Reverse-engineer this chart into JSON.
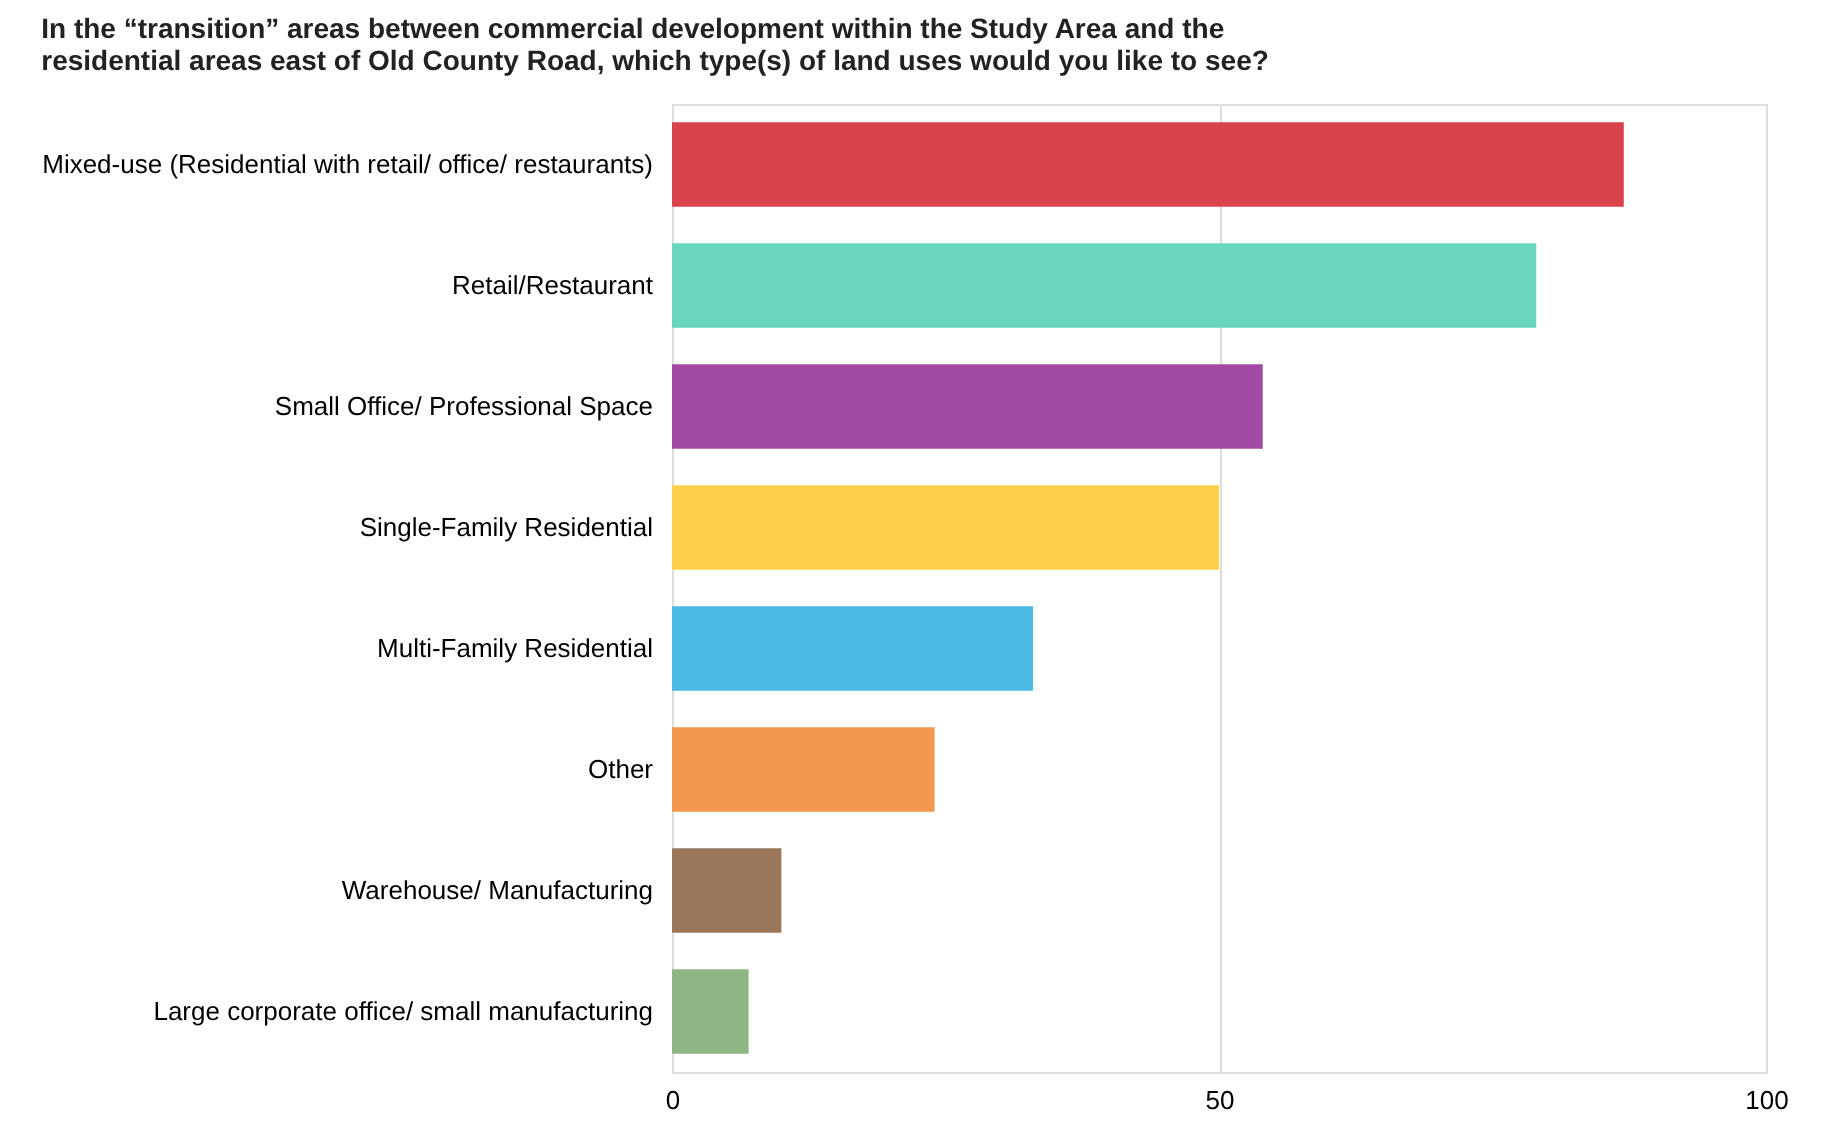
{
  "chart_data": {
    "type": "bar",
    "orientation": "horizontal",
    "title": [
      "In the “transition” areas between commercial development within the Study Area and the",
      "residential areas east of Old County Road, which type(s) of land uses would you like to see?"
    ],
    "categories": [
      "Mixed-use (Residential with retail/ office/ restaurants)",
      "Retail/Restaurant",
      "Small Office/ Professional Space",
      "Single-Family Residential",
      "Multi-Family Residential",
      "Other",
      "Warehouse/ Manufacturing",
      "Large corporate office/ small manufacturing"
    ],
    "values": [
      87,
      79,
      54,
      50,
      33,
      24,
      10,
      7
    ],
    "colors": [
      "#d9434b",
      "#6ad6c0",
      "#a24aa3",
      "#fcd04a",
      "#4ab9e3",
      "#f3974a",
      "#9a765a",
      "#8fb585"
    ],
    "xlim": [
      0,
      100
    ],
    "xticks": [
      0,
      50,
      100
    ],
    "grid": "x",
    "legend": false
  }
}
